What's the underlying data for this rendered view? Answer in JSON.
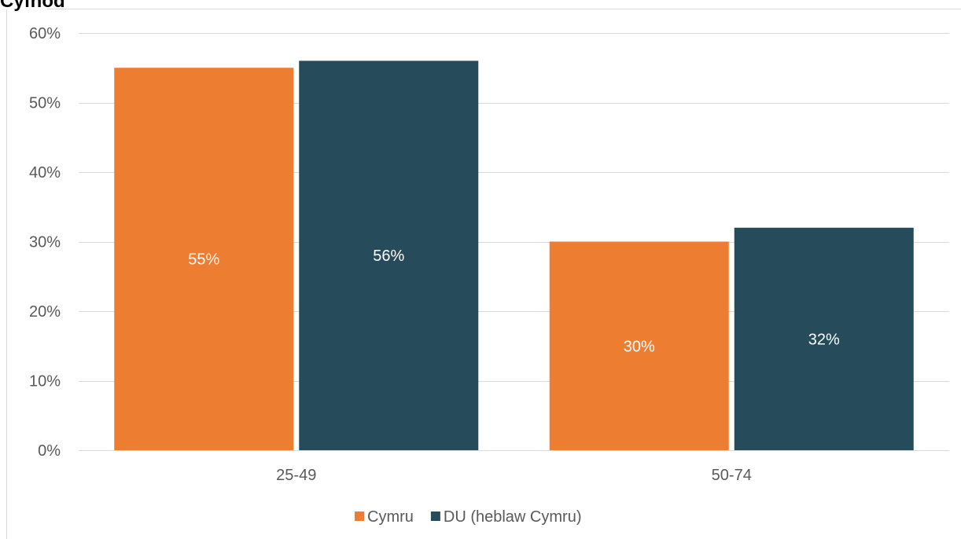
{
  "chart_data": {
    "type": "bar",
    "title": "Cyfnod",
    "categories": [
      "25-49",
      "50-74"
    ],
    "series": [
      {
        "name": "Cymru",
        "color": "#ED7D31",
        "values": [
          55,
          30
        ],
        "labels": [
          "55%",
          "30%"
        ]
      },
      {
        "name": "DU (heblaw Cymru)",
        "color": "#264B5A",
        "values": [
          56,
          32
        ],
        "labels": [
          "56%",
          "32%"
        ]
      }
    ],
    "ylim": [
      0,
      60
    ],
    "yticks": [
      0,
      10,
      20,
      30,
      40,
      50,
      60
    ],
    "ytick_labels": [
      "0%",
      "10%",
      "20%",
      "30%",
      "40%",
      "50%",
      "60%"
    ],
    "grid": true,
    "legend_position": "bottom",
    "xlabel": "",
    "ylabel": ""
  }
}
